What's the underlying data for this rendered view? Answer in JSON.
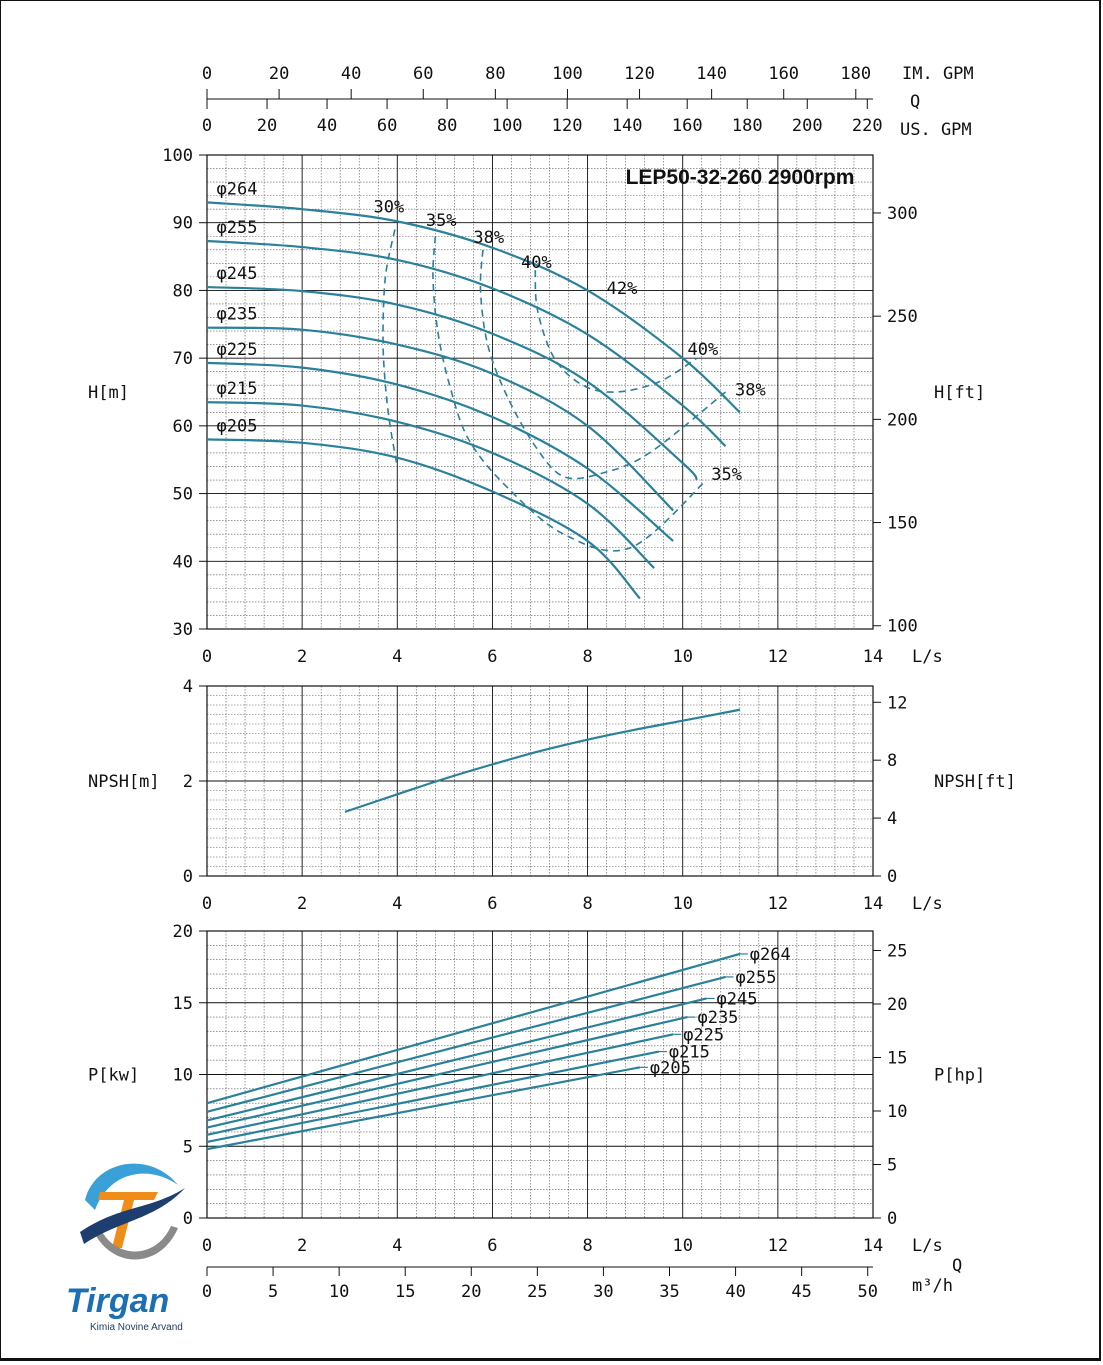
{
  "chart_data": {
    "type": "line",
    "title": "LEP50-32-260 2900rpm",
    "top_scales": {
      "im_gpm": {
        "label": "IM. GPM",
        "ticks": [
          0,
          20,
          40,
          60,
          80,
          100,
          120,
          140,
          160,
          180
        ]
      },
      "q_label": "Q",
      "us_gpm": {
        "label": "US. GPM",
        "ticks": [
          0,
          20,
          40,
          60,
          80,
          100,
          120,
          140,
          160,
          180,
          200,
          220
        ]
      }
    },
    "bottom_scales": {
      "q_label": "Q",
      "m3h": {
        "label": "m³/h",
        "ticks": [
          0,
          5,
          10,
          15,
          20,
          25,
          30,
          35,
          40,
          45,
          50
        ]
      }
    },
    "panels": {
      "head": {
        "xlabel": "L/s",
        "ylabel": "H[m]",
        "ylabel_right": "H[ft]",
        "xlim": [
          0,
          14
        ],
        "ylim": [
          30,
          100
        ],
        "x_ticks": [
          0,
          2,
          4,
          6,
          8,
          10,
          12,
          14
        ],
        "y_ticks": [
          30,
          40,
          50,
          60,
          70,
          80,
          90,
          100
        ],
        "y_right_ticks": [
          100,
          150,
          200,
          250,
          300
        ],
        "series": [
          {
            "name": "φ264",
            "x": [
              0,
              2,
              4,
              6,
              8,
              10,
              11.2
            ],
            "y": [
              93,
              92,
              90.2,
              86.3,
              80,
              70,
              62
            ]
          },
          {
            "name": "φ255",
            "x": [
              0,
              2,
              4,
              6,
              8,
              10,
              10.9
            ],
            "y": [
              87.3,
              86.4,
              84.5,
              80.3,
              73.5,
              63,
              57
            ]
          },
          {
            "name": "φ245",
            "x": [
              0,
              2,
              4,
              6,
              8,
              10,
              10.3
            ],
            "y": [
              80.5,
              79.9,
              77.9,
              73.6,
              66.5,
              54.5,
              52
            ]
          },
          {
            "name": "φ235",
            "x": [
              0,
              2,
              4,
              6,
              8,
              9.8
            ],
            "y": [
              74.5,
              74.2,
              72,
              67.7,
              60,
              47.5
            ]
          },
          {
            "name": "φ225",
            "x": [
              0,
              2,
              4,
              6,
              8,
              9.8
            ],
            "y": [
              69.3,
              68.6,
              66.1,
              61.3,
              53.7,
              43
            ]
          },
          {
            "name": "φ215",
            "x": [
              0,
              2,
              4,
              6,
              8,
              9.4
            ],
            "y": [
              63.5,
              63,
              60.6,
              56,
              48.5,
              39
            ]
          },
          {
            "name": "φ205",
            "x": [
              0,
              2,
              4,
              6,
              8,
              9.1
            ],
            "y": [
              58,
              57.5,
              55.3,
              50.3,
              43,
              34.5
            ]
          }
        ],
        "efficiency_curves": [
          {
            "label": "30%",
            "x": [
              3.95,
              3.75,
              3.7,
              3.75,
              3.85,
              4.0
            ],
            "y": [
              89,
              82,
              73,
              66,
              60,
              54
            ]
          },
          {
            "label": "35%",
            "x": [
              4.8,
              4.75,
              4.85,
              5.1,
              5.5,
              6.3,
              7.5,
              8.9,
              10.5
            ],
            "y": [
              88,
              82,
              74,
              66,
              58,
              51,
              44,
              42,
              52
            ]
          },
          {
            "label": "38%",
            "x": [
              5.8,
              5.75,
              5.9,
              6.3,
              6.9,
              7.5,
              8.3,
              9.3,
              10.9
            ],
            "y": [
              86,
              80,
              72,
              64.5,
              57,
              52.5,
              53,
              56,
              65
            ]
          },
          {
            "label": "40%",
            "x": [
              6.9,
              6.95,
              7.3,
              7.9,
              8.6,
              9.5,
              10.3
            ],
            "y": [
              83,
              77,
              70,
              66,
              65,
              66.5,
              70
            ]
          }
        ],
        "efficiency_labels": [
          "30%",
          "35%",
          "38%",
          "40%",
          "42%",
          "40%",
          "38%",
          "35%"
        ]
      },
      "npsh": {
        "xlabel": "L/s",
        "ylabel": "NPSH[m]",
        "ylabel_right": "NPSH[ft]",
        "xlim": [
          0,
          14
        ],
        "ylim": [
          0,
          4
        ],
        "x_ticks": [
          0,
          2,
          4,
          6,
          8,
          10,
          12,
          14
        ],
        "y_ticks": [
          0,
          2,
          4
        ],
        "y_right_ticks": [
          0,
          4,
          8,
          12
        ],
        "series": [
          {
            "x": [
              2.9,
              4,
              5,
              6,
              7,
              8,
              9,
              10,
              11.2
            ],
            "y": [
              1.35,
              1.72,
              2.05,
              2.35,
              2.63,
              2.87,
              3.08,
              3.27,
              3.5
            ]
          }
        ]
      },
      "power": {
        "xlabel": "L/s",
        "ylabel": "P[kw]",
        "ylabel_right": "P[hp]",
        "xlim": [
          0,
          14
        ],
        "ylim": [
          0,
          20
        ],
        "x_ticks": [
          0,
          2,
          4,
          6,
          8,
          10,
          12,
          14
        ],
        "y_ticks": [
          0,
          5,
          10,
          15,
          20
        ],
        "y_right_ticks": [
          0,
          5,
          10,
          15,
          20,
          25
        ],
        "series": [
          {
            "name": "φ264",
            "x": [
              0,
              11.2
            ],
            "y": [
              8.0,
              18.4
            ]
          },
          {
            "name": "φ255",
            "x": [
              0,
              10.9
            ],
            "y": [
              7.4,
              16.8
            ]
          },
          {
            "name": "φ245",
            "x": [
              0,
              10.5
            ],
            "y": [
              6.8,
              15.3
            ]
          },
          {
            "name": "φ235",
            "x": [
              0,
              10.1
            ],
            "y": [
              6.3,
              14.0
            ]
          },
          {
            "name": "φ225",
            "x": [
              0,
              9.8
            ],
            "y": [
              5.8,
              12.8
            ]
          },
          {
            "name": "φ215",
            "x": [
              0,
              9.5
            ],
            "y": [
              5.3,
              11.6
            ]
          },
          {
            "name": "φ205",
            "x": [
              0,
              9.1
            ],
            "y": [
              4.8,
              10.5
            ]
          }
        ]
      }
    }
  },
  "logo": {
    "word": "Tirgan",
    "tagline": "Kimia Novine Arvand"
  },
  "colors": {
    "curve": "#2a8199",
    "grid": "#555555",
    "grid_major": "#111111"
  }
}
